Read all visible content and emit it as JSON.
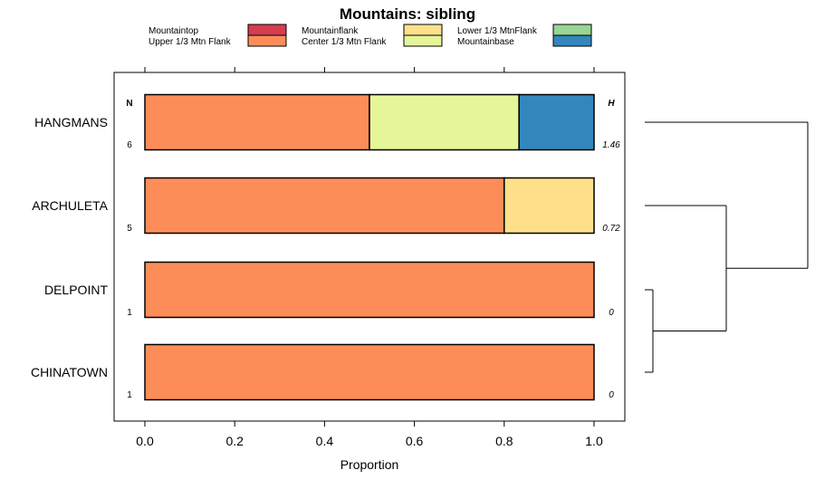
{
  "chart_data": {
    "type": "bar",
    "orientation": "horizontal",
    "stacked": true,
    "title": "Mountains: sibling",
    "xlabel": "Proportion",
    "ylabel": "",
    "xlim": [
      0,
      1
    ],
    "x_ticks": [
      "0.0",
      "0.2",
      "0.4",
      "0.6",
      "0.8",
      "1.0"
    ],
    "legend": [
      {
        "name": "Mountaintop",
        "color": "#d53e4f"
      },
      {
        "name": "Upper 1/3 Mtn Flank",
        "color": "#fc8d59"
      },
      {
        "name": "Mountainflank",
        "color": "#fee08b"
      },
      {
        "name": "Center 1/3 Mtn Flank",
        "color": "#e6f598"
      },
      {
        "name": "Lower 1/3 MtnFlank",
        "color": "#99d594"
      },
      {
        "name": "Mountainbase",
        "color": "#3288bd"
      }
    ],
    "legend_placement": "top",
    "n_header": "N",
    "h_header": "H",
    "categories": [
      "HANGMANS",
      "ARCHULETA",
      "DELPOINT",
      "CHINATOWN"
    ],
    "n_values": [
      "6",
      "5",
      "1",
      "1"
    ],
    "h_values": [
      "1.46",
      "0.72",
      "0",
      "0"
    ],
    "series": [
      {
        "name": "Mountaintop",
        "values": [
          0,
          0,
          0,
          0
        ]
      },
      {
        "name": "Upper 1/3 Mtn Flank",
        "values": [
          0.5,
          0.8,
          1.0,
          1.0
        ]
      },
      {
        "name": "Mountainflank",
        "values": [
          0,
          0.2,
          0,
          0
        ]
      },
      {
        "name": "Center 1/3 Mtn Flank",
        "values": [
          0.333,
          0,
          0,
          0
        ]
      },
      {
        "name": "Lower 1/3 MtnFlank",
        "values": [
          0,
          0,
          0,
          0
        ]
      },
      {
        "name": "Mountainbase",
        "values": [
          0.167,
          0,
          0,
          0
        ]
      }
    ],
    "dendrogram": {
      "leaves": [
        "HANGMANS",
        "ARCHULETA",
        "DELPOINT",
        "CHINATOWN"
      ],
      "merges": [
        {
          "left": "DELPOINT",
          "right": "CHINATOWN",
          "height": 0.05
        },
        {
          "left": "ARCHULETA",
          "right": "DELPOINT+CHINATOWN",
          "height": 0.5
        },
        {
          "left": "HANGMANS",
          "right": "ARCHULETA+DELPOINT+CHINATOWN",
          "height": 1.0
        }
      ]
    }
  }
}
